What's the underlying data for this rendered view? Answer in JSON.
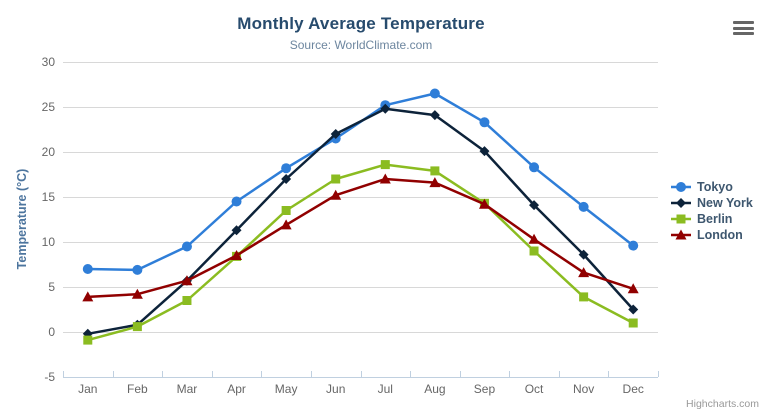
{
  "chart_data": {
    "type": "line",
    "title": "Monthly Average Temperature",
    "subtitle": "Source: WorldClimate.com",
    "xlabel": "",
    "ylabel": "Temperature (°C)",
    "categories": [
      "Jan",
      "Feb",
      "Mar",
      "Apr",
      "May",
      "Jun",
      "Jul",
      "Aug",
      "Sep",
      "Oct",
      "Nov",
      "Dec"
    ],
    "ylim": [
      -5,
      30
    ],
    "ytick_step": 5,
    "grid": true,
    "legend_position": "right",
    "series": [
      {
        "name": "Tokyo",
        "color": "#2f7ed8",
        "marker": "circle",
        "values": [
          7.0,
          6.9,
          9.5,
          14.5,
          18.2,
          21.5,
          25.2,
          26.5,
          23.3,
          18.3,
          13.9,
          9.6
        ]
      },
      {
        "name": "New York",
        "color": "#0d233a",
        "marker": "diamond",
        "values": [
          -0.2,
          0.8,
          5.7,
          11.3,
          17.0,
          22.0,
          24.8,
          24.1,
          20.1,
          14.1,
          8.6,
          2.5
        ]
      },
      {
        "name": "Berlin",
        "color": "#8bbc21",
        "marker": "square",
        "values": [
          -0.9,
          0.6,
          3.5,
          8.4,
          13.5,
          17.0,
          18.6,
          17.9,
          14.3,
          9.0,
          3.9,
          1.0
        ]
      },
      {
        "name": "London",
        "color": "#910000",
        "marker": "triangle",
        "values": [
          3.9,
          4.2,
          5.7,
          8.5,
          11.9,
          15.2,
          17.0,
          16.6,
          14.2,
          10.3,
          6.6,
          4.8
        ]
      }
    ],
    "credits": "Highcharts.com",
    "colors": {
      "grid": "#d8d8d8",
      "axis_line": "#c0d0e0",
      "axis_label": "#666666",
      "title": "#274b6d",
      "subtitle": "#6d869f",
      "legend_text": "#3e576f"
    },
    "icons": {
      "export_menu": "hamburger-menu-icon"
    }
  }
}
